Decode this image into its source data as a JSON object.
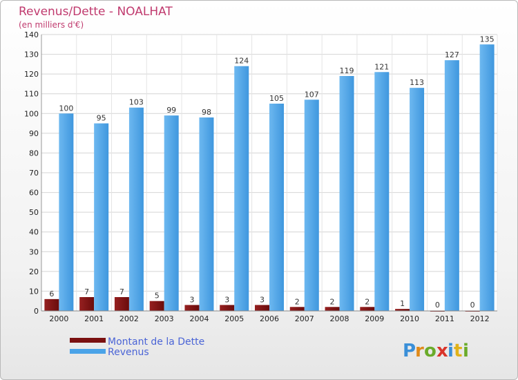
{
  "chart_data": {
    "type": "bar",
    "title": "Revenus/Dette - NOALHAT",
    "subtitle": "(en milliers d'€)",
    "categories": [
      "2000",
      "2001",
      "2002",
      "2003",
      "2004",
      "2005",
      "2006",
      "2007",
      "2008",
      "2009",
      "2010",
      "2011",
      "2012"
    ],
    "series": [
      {
        "name": "Montant de la Dette",
        "color": "#7a1010",
        "values": [
          6,
          7,
          7,
          5,
          3,
          3,
          3,
          2,
          2,
          2,
          1,
          0,
          0
        ]
      },
      {
        "name": "Revenus",
        "color": "#4aa3e8",
        "values": [
          100,
          95,
          103,
          99,
          98,
          124,
          105,
          107,
          119,
          121,
          113,
          127,
          135
        ]
      }
    ],
    "y_ticks": [
      0,
      10,
      20,
      30,
      40,
      50,
      60,
      70,
      80,
      90,
      100,
      110,
      120,
      130,
      140
    ],
    "ylim": [
      0,
      140
    ],
    "grid": true,
    "legend_position": "bottom-left"
  },
  "branding": {
    "logo_text": "Proxiti"
  }
}
